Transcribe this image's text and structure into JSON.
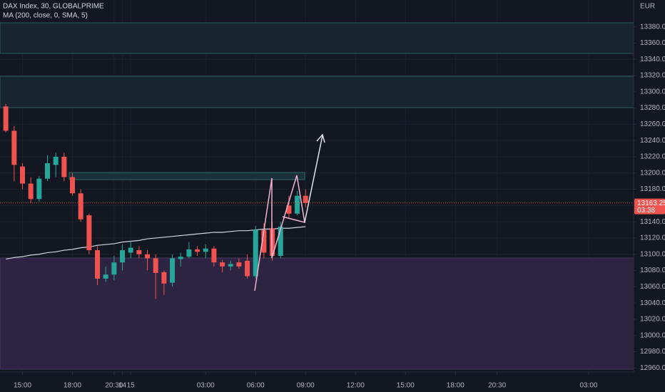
{
  "chart_data": {
    "type": "candlestick",
    "title": "DAX Index, 30, GLOBALPRIME",
    "currency": "EUR",
    "x": [
      0,
      1,
      2,
      3,
      4,
      5,
      6,
      7,
      8,
      9,
      10,
      11,
      12,
      13,
      14,
      15,
      16,
      17,
      18,
      19,
      20,
      21,
      22,
      23,
      24,
      25,
      26,
      27,
      28,
      29,
      30,
      31,
      32,
      33,
      34,
      35,
      36
    ],
    "open": [
      13282,
      13252,
      13208,
      13187,
      13168,
      13193,
      13210,
      13220,
      13195,
      13175,
      13148,
      13105,
      13070,
      13075,
      13090,
      13102,
      13105,
      13100,
      13095,
      13078,
      13065,
      13094,
      13097,
      13106,
      13103,
      13107,
      13090,
      13085,
      13090,
      13092,
      13073,
      13130,
      13132,
      13098,
      13160,
      13150,
      13172
    ],
    "high": [
      13285,
      13258,
      13212,
      13195,
      13196,
      13222,
      13225,
      13225,
      13200,
      13180,
      13150,
      13110,
      13085,
      13098,
      13112,
      13116,
      13110,
      13105,
      13100,
      13080,
      13100,
      13102,
      13115,
      13110,
      13112,
      13110,
      13093,
      13092,
      13095,
      13100,
      13135,
      13138,
      13140,
      13140,
      13172,
      13178,
      13180
    ],
    "low": [
      13250,
      13190,
      13180,
      13163,
      13165,
      13190,
      13195,
      13190,
      13172,
      13140,
      13100,
      13062,
      13066,
      13068,
      13080,
      13095,
      13095,
      13080,
      13045,
      13050,
      13060,
      13085,
      13095,
      13098,
      13095,
      13085,
      13078,
      13080,
      13082,
      13070,
      13070,
      13095,
      13092,
      13095,
      13145,
      13148,
      13158
    ],
    "close": [
      13252,
      13210,
      13187,
      13168,
      13193,
      13212,
      13220,
      13195,
      13175,
      13143,
      13105,
      13070,
      13075,
      13090,
      13105,
      13108,
      13100,
      13095,
      13077,
      13064,
      13095,
      13097,
      13106,
      13103,
      13107,
      13090,
      13085,
      13088,
      13085,
      13073,
      13130,
      13102,
      13098,
      13134,
      13150,
      13172,
      13163.25
    ],
    "up_color": "#26a69a",
    "down_color": "#ef5350",
    "series": [
      {
        "name": "MA (200, close, 0, SMA, 5)",
        "color": "#d1d4dc",
        "values": [
          13094,
          13096,
          13097,
          13099,
          13100,
          13102,
          13103,
          13105,
          13106,
          13108,
          13109,
          13111,
          13112,
          13113,
          13115,
          13116,
          13117,
          13119,
          13120,
          13121,
          13122,
          13123,
          13124,
          13125,
          13126,
          13127,
          13127,
          13128,
          13129,
          13129,
          13130,
          13131,
          13131,
          13132,
          13132,
          13133,
          13134
        ]
      }
    ],
    "xlim": [
      -0.7,
      75.4
    ],
    "xticks": [
      {
        "value": 2,
        "label": "15:00"
      },
      {
        "value": 8,
        "label": "18:00"
      },
      {
        "value": 13,
        "label": "20:30"
      },
      14,
      {
        "value": 24,
        "label": "03:00"
      },
      {
        "value": 30,
        "label": "06:00"
      },
      {
        "value": 36,
        "label": "09:00"
      },
      {
        "value": 42,
        "label": "12:00"
      },
      {
        "value": 48,
        "label": "15:00"
      },
      {
        "value": 54,
        "label": "18:00"
      },
      {
        "value": 59,
        "label": "20:30"
      },
      15,
      {
        "value": 70,
        "label": "03:00"
      }
    ],
    "ylim": [
      12955,
      13413
    ],
    "yticks": [
      {
        "value": 12960,
        "label": "12960.00"
      },
      {
        "value": 12980,
        "label": "12980.00"
      },
      {
        "value": 13000,
        "label": "13000.00"
      },
      {
        "value": 13020,
        "label": "13020.00"
      },
      {
        "value": 13040,
        "label": "13040.00"
      },
      {
        "value": 13060,
        "label": "13060.00"
      },
      {
        "value": 13080,
        "label": "13080.00"
      },
      {
        "value": 13100,
        "label": "13100.00"
      },
      {
        "value": 13120,
        "label": "13120.00"
      },
      {
        "value": 13140,
        "label": "13140.00"
      },
      {
        "value": 13160,
        "label": "13160.00"
      },
      {
        "value": 13180,
        "label": "13180.00"
      },
      {
        "value": 13200,
        "label": "13200.00"
      },
      {
        "value": 13220,
        "label": "13220.00"
      },
      {
        "value": 13240,
        "label": "13240.00"
      },
      {
        "value": 13260,
        "label": "13260.00"
      },
      {
        "value": 13280,
        "label": "13280.00"
      },
      {
        "value": 13300,
        "label": "13300.00"
      },
      {
        "value": 13320,
        "label": "13320.00"
      },
      {
        "value": 13340,
        "label": "13340.00"
      },
      {
        "value": 13360,
        "label": "13360.00"
      },
      {
        "value": 13380,
        "label": "13380.00"
      }
    ],
    "last_price": {
      "value": 13163.25,
      "label": "13163.25"
    },
    "countdown": "03:38",
    "grid": true
  }
}
